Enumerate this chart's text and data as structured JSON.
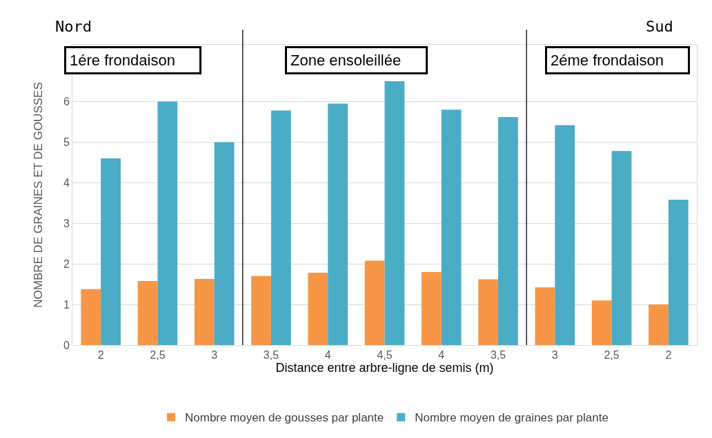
{
  "chart_data": {
    "type": "bar",
    "xlabel": "Distance entre arbre-ligne de semis (m)",
    "ylabel": "NOMBRE DE GRAINES ET DE GOUSSES",
    "categories": [
      "2",
      "2,5",
      "3",
      "3,5",
      "4",
      "4,5",
      "4",
      "3,5",
      "3",
      "2,5",
      "2"
    ],
    "series": [
      {
        "name": "Nombre moyen de gousses par plante",
        "color": "#f79646",
        "values": [
          1.38,
          1.58,
          1.63,
          1.7,
          1.78,
          2.08,
          1.8,
          1.62,
          1.42,
          1.1,
          1.0
        ]
      },
      {
        "name": "Nombre moyen de graines par plante",
        "color": "#4bacc6",
        "values": [
          4.6,
          6.0,
          5.0,
          5.78,
          5.95,
          6.5,
          5.8,
          5.62,
          5.42,
          4.78,
          3.58
        ]
      }
    ],
    "ylim": [
      0,
      7.4
    ],
    "yticks": [
      0,
      1,
      2,
      3,
      4,
      5,
      6
    ],
    "grid": "y",
    "legend": "bottom",
    "annotations": [
      "Nord",
      "Sud",
      "1ére frondaison",
      "Zone ensoleillée",
      "2éme frondaison"
    ]
  }
}
